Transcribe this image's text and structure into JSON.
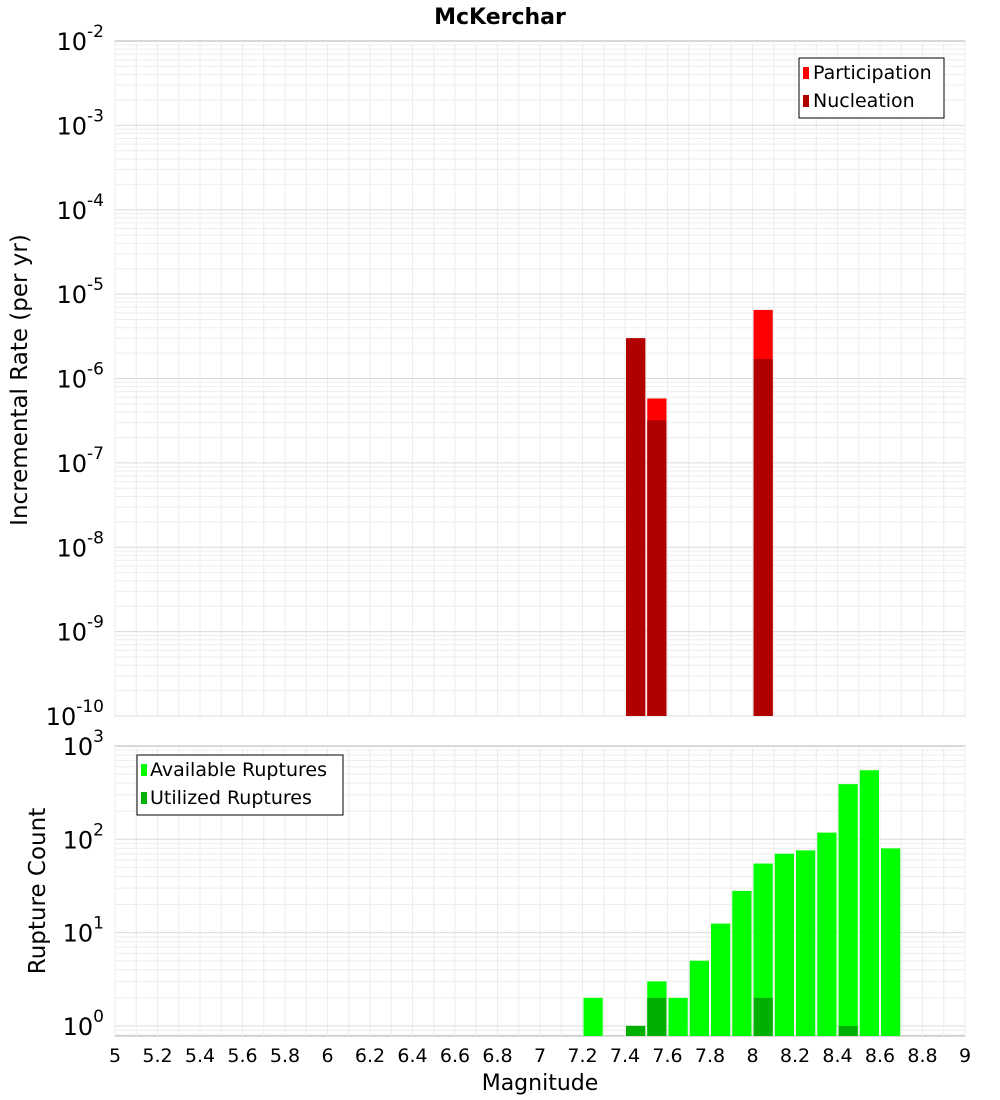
{
  "chart_data": [
    {
      "type": "bar",
      "title": "McKerchar",
      "xlabel": "",
      "ylabel": "Incremental Rate (per yr)",
      "yscale": "log",
      "ylim": [
        1e-10,
        0.01
      ],
      "xlim": [
        5,
        9
      ],
      "y_ticks": [
        {
          "base": "10",
          "exp": "-10"
        },
        {
          "base": "10",
          "exp": "-9"
        },
        {
          "base": "10",
          "exp": "-8"
        },
        {
          "base": "10",
          "exp": "-7"
        },
        {
          "base": "10",
          "exp": "-6"
        },
        {
          "base": "10",
          "exp": "-5"
        },
        {
          "base": "10",
          "exp": "-4"
        },
        {
          "base": "10",
          "exp": "-3"
        },
        {
          "base": "10",
          "exp": "-2"
        }
      ],
      "legend_position": "top-right",
      "series": [
        {
          "name": "Participation",
          "color": "#ff0000",
          "points": [
            {
              "x": 7.45,
              "y": 3e-06
            },
            {
              "x": 7.55,
              "y": 5.8e-07
            },
            {
              "x": 8.05,
              "y": 6.5e-06
            }
          ]
        },
        {
          "name": "Nucleation",
          "color": "#b00000",
          "points": [
            {
              "x": 7.45,
              "y": 3e-06
            },
            {
              "x": 7.55,
              "y": 3.2e-07
            },
            {
              "x": 8.05,
              "y": 1.7e-06
            }
          ]
        }
      ]
    },
    {
      "type": "bar",
      "title": "",
      "xlabel": "Magnitude",
      "ylabel": "Rupture Count",
      "yscale": "log",
      "ylim": [
        0.78,
        1000
      ],
      "xlim": [
        5,
        9
      ],
      "y_ticks": [
        {
          "base": "10",
          "exp": "0"
        },
        {
          "base": "10",
          "exp": "1"
        },
        {
          "base": "10",
          "exp": "2"
        },
        {
          "base": "10",
          "exp": "3"
        }
      ],
      "x_ticks": [
        "5",
        "5.2",
        "5.4",
        "5.6",
        "5.8",
        "6",
        "6.2",
        "6.4",
        "6.6",
        "6.8",
        "7",
        "7.2",
        "7.4",
        "7.6",
        "7.8",
        "8",
        "8.2",
        "8.4",
        "8.6",
        "8.8",
        "9"
      ],
      "legend_position": "top-left",
      "series": [
        {
          "name": "Available Ruptures",
          "color": "#00ff00",
          "points": [
            {
              "x": 7.25,
              "y": 2
            },
            {
              "x": 7.45,
              "y": 1
            },
            {
              "x": 7.55,
              "y": 3
            },
            {
              "x": 7.65,
              "y": 2
            },
            {
              "x": 7.75,
              "y": 5
            },
            {
              "x": 7.85,
              "y": 12.5
            },
            {
              "x": 7.95,
              "y": 28
            },
            {
              "x": 8.05,
              "y": 55
            },
            {
              "x": 8.15,
              "y": 70
            },
            {
              "x": 8.25,
              "y": 76
            },
            {
              "x": 8.35,
              "y": 118
            },
            {
              "x": 8.45,
              "y": 390
            },
            {
              "x": 8.55,
              "y": 550
            },
            {
              "x": 8.65,
              "y": 80
            }
          ]
        },
        {
          "name": "Utilized Ruptures",
          "color": "#00b000",
          "points": [
            {
              "x": 7.45,
              "y": 1
            },
            {
              "x": 7.55,
              "y": 2
            },
            {
              "x": 8.05,
              "y": 2
            },
            {
              "x": 8.45,
              "y": 1
            }
          ]
        }
      ]
    }
  ]
}
